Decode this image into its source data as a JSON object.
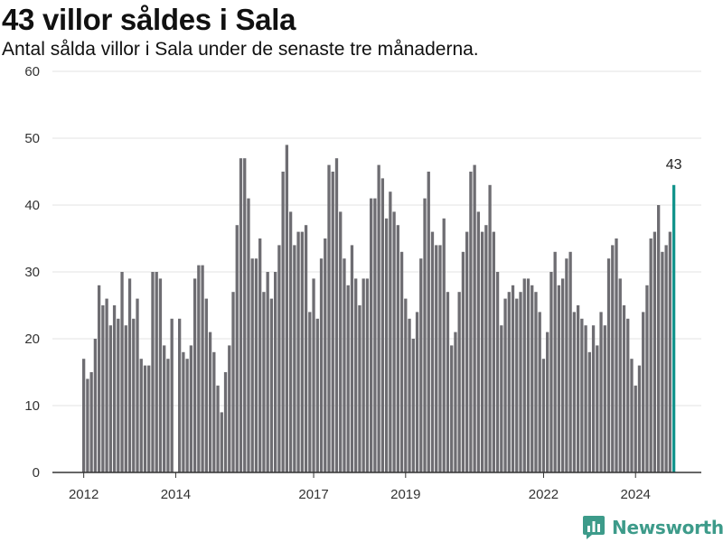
{
  "title": "43 villor såldes i Sala",
  "subtitle": "Antal sålda villor i Sala under de senaste tre månaderna.",
  "brand": {
    "name": "Newsworthy",
    "icon": "bar-chart-icon",
    "color": "#3d9b8a"
  },
  "chart_data": {
    "type": "bar",
    "title": "43 villor såldes i Sala",
    "subtitle": "Antal sålda villor i Sala under de senaste tre månaderna.",
    "xlabel": "",
    "ylabel": "",
    "ylim": [
      0,
      60
    ],
    "yticks": [
      0,
      10,
      20,
      30,
      40,
      50,
      60
    ],
    "xticks": [
      "2012",
      "2014",
      "2017",
      "2019",
      "2022",
      "2024"
    ],
    "grid": "horizontal",
    "start": "2012-01",
    "frequency": "monthly",
    "bar_color": "#6e6d72",
    "highlight_color": "#13948c",
    "highlight_label": "43",
    "values": [
      17,
      14,
      15,
      20,
      28,
      25,
      26,
      22,
      25,
      23,
      30,
      22,
      29,
      23,
      26,
      17,
      16,
      16,
      30,
      30,
      29,
      19,
      17,
      23,
      0,
      23,
      18,
      17,
      19,
      29,
      31,
      31,
      26,
      21,
      18,
      13,
      9,
      15,
      19,
      27,
      37,
      47,
      47,
      41,
      32,
      32,
      35,
      27,
      30,
      26,
      30,
      34,
      45,
      49,
      39,
      34,
      36,
      36,
      37,
      24,
      29,
      23,
      32,
      35,
      46,
      45,
      47,
      39,
      32,
      28,
      34,
      29,
      25,
      29,
      29,
      41,
      41,
      46,
      44,
      38,
      42,
      39,
      37,
      33,
      26,
      23,
      20,
      24,
      32,
      41,
      45,
      36,
      34,
      34,
      38,
      27,
      19,
      21,
      27,
      33,
      36,
      45,
      46,
      39,
      36,
      37,
      43,
      36,
      30,
      22,
      26,
      27,
      28,
      26,
      27,
      29,
      29,
      28,
      27,
      24,
      17,
      21,
      30,
      33,
      28,
      29,
      32,
      33,
      24,
      25,
      23,
      22,
      18,
      22,
      19,
      24,
      22,
      32,
      34,
      35,
      29,
      25,
      23,
      17,
      13,
      16,
      24,
      28,
      35,
      36,
      40,
      33,
      34,
      36,
      43
    ]
  }
}
